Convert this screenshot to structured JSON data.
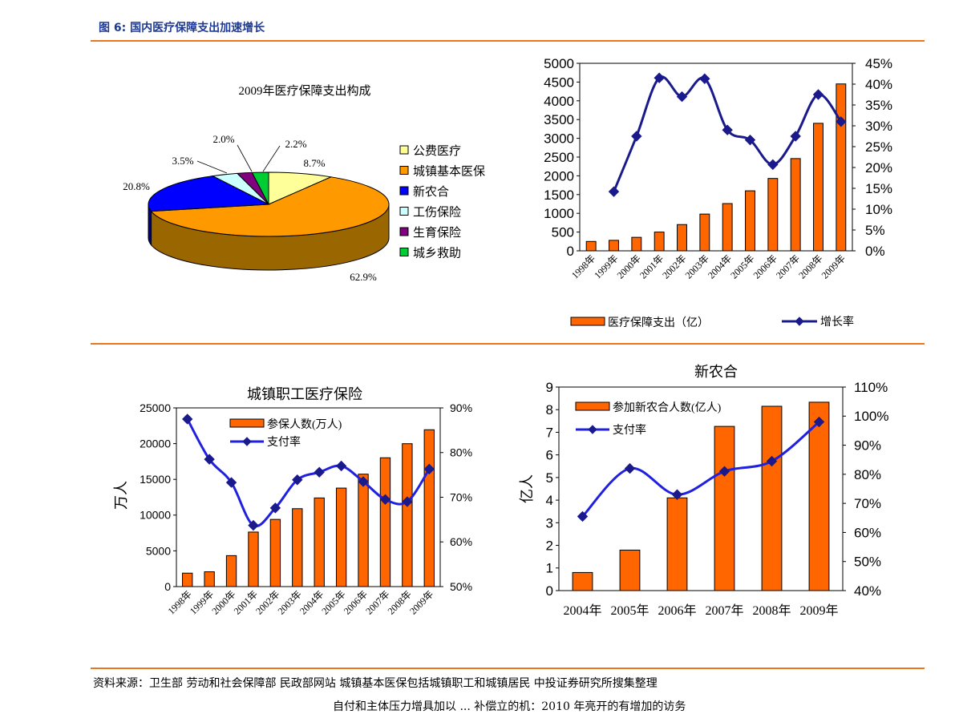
{
  "page": {
    "figure_title": "图 6:  国内医疗保障支出加速增长",
    "source": "资料来源：卫生部 劳动和社会保障部 民政部网站 城镇基本医保包括城镇职工和城镇居民 中投证券研究所搜集整理",
    "footer_fragment": "自付和主体压力增具加以 ... 补偿立的机：2010 年亮开的有增加的访务"
  },
  "colors": {
    "accent_rule": "#e8771e",
    "bar_orange": "#ff6600",
    "line_navy": "#1a1a8c",
    "line_blue": "#2020e0",
    "title_blue": "#1f3a93"
  },
  "chart_data": [
    {
      "id": "pie",
      "type": "pie",
      "title": "2009年医疗保障支出构成",
      "slices": [
        {
          "name": "公费医疗",
          "value": 8.7,
          "label": "8.7%",
          "color": "#ffff99"
        },
        {
          "name": "城镇基本医保",
          "value": 62.9,
          "label": "62.9%",
          "color": "#ff9900"
        },
        {
          "name": "新农合",
          "value": 20.8,
          "label": "20.8%",
          "color": "#0000ff"
        },
        {
          "name": "工伤保险",
          "value": 3.5,
          "label": "3.5%",
          "color": "#ccffff"
        },
        {
          "name": "生育保险",
          "value": 2.0,
          "label": "2.0%",
          "color": "#800080"
        },
        {
          "name": "城乡救助",
          "value": 2.2,
          "label": "2.2%",
          "color": "#00cc33"
        }
      ],
      "legend": "right"
    },
    {
      "id": "spending",
      "type": "bar+line",
      "categories": [
        "1998年",
        "1999年",
        "2000年",
        "2001年",
        "2002年",
        "2003年",
        "2004年",
        "2005年",
        "2006年",
        "2007年",
        "2008年",
        "2009年"
      ],
      "series": [
        {
          "name": "医疗保障支出（亿）",
          "kind": "bar",
          "axis": "left",
          "values": [
            250,
            280,
            360,
            500,
            700,
            980,
            1260,
            1600,
            1930,
            2460,
            3400,
            4450
          ]
        },
        {
          "name": "增长率",
          "kind": "line",
          "axis": "right",
          "values": [
            null,
            14.2,
            27.5,
            41.5,
            37.0,
            41.3,
            29.0,
            26.6,
            20.7,
            27.5,
            37.5,
            31.0
          ]
        }
      ],
      "y_left": {
        "min": 0,
        "max": 5000,
        "ticks": [
          "0",
          "500",
          "1000",
          "1500",
          "2000",
          "2500",
          "3000",
          "3500",
          "4000",
          "4500",
          "5000"
        ]
      },
      "y_right": {
        "min": 0,
        "max": 45,
        "ticks": [
          "0%",
          "5%",
          "10%",
          "15%",
          "20%",
          "25%",
          "30%",
          "35%",
          "40%",
          "45%"
        ]
      },
      "legend": "bottom"
    },
    {
      "id": "urban_employee",
      "type": "bar+line",
      "title": "城镇职工医疗保险",
      "ylabel": "万人",
      "categories": [
        "1998年",
        "1999年",
        "2000年",
        "2001年",
        "2002年",
        "2003年",
        "2004年",
        "2005年",
        "2006年",
        "2007年",
        "2008年",
        "2009年"
      ],
      "series": [
        {
          "name": "参保人数(万人)",
          "kind": "bar",
          "axis": "left",
          "values": [
            1880,
            2070,
            4330,
            7630,
            9400,
            10900,
            12400,
            13780,
            15730,
            18020,
            19990,
            21940
          ]
        },
        {
          "name": "支付率",
          "kind": "line",
          "axis": "right",
          "values": [
            87.5,
            78.5,
            73.3,
            63.7,
            67.6,
            73.9,
            75.6,
            77.0,
            73.5,
            69.5,
            69.0,
            76.3
          ]
        }
      ],
      "y_left": {
        "min": 0,
        "max": 25000,
        "ticks": [
          "0",
          "5000",
          "10000",
          "15000",
          "20000",
          "25000"
        ]
      },
      "y_right": {
        "min": 50,
        "max": 90,
        "ticks": [
          "50%",
          "60%",
          "70%",
          "80%",
          "90%"
        ]
      },
      "legend": "top-right"
    },
    {
      "id": "ncms",
      "type": "bar+line",
      "title": "新农合",
      "ylabel": "亿人",
      "categories": [
        "2004年",
        "2005年",
        "2006年",
        "2007年",
        "2008年",
        "2009年"
      ],
      "series": [
        {
          "name": "参加新农合人数(亿人)",
          "kind": "bar",
          "axis": "left",
          "values": [
            0.8,
            1.79,
            4.1,
            7.26,
            8.15,
            8.33
          ]
        },
        {
          "name": "支付率",
          "kind": "line",
          "axis": "right",
          "values": [
            65.5,
            82.0,
            73.0,
            81.0,
            84.5,
            98.0
          ]
        }
      ],
      "y_left": {
        "min": 0,
        "max": 9,
        "ticks": [
          "0",
          "1",
          "2",
          "3",
          "4",
          "5",
          "6",
          "7",
          "8",
          "9"
        ]
      },
      "y_right": {
        "min": 40,
        "max": 110,
        "ticks": [
          "40%",
          "50%",
          "60%",
          "70%",
          "80%",
          "90%",
          "100%",
          "110%"
        ]
      },
      "legend": "top-left"
    }
  ]
}
